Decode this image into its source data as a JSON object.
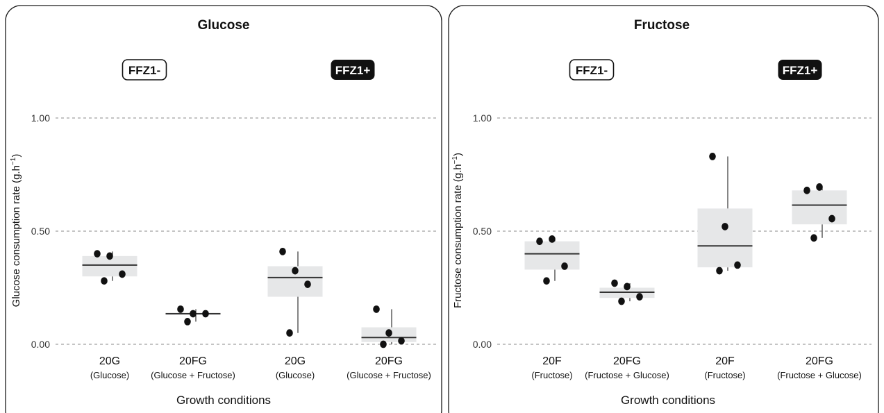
{
  "chart_data": [
    {
      "type": "box",
      "title": "Glucose",
      "xlabel": "Growth conditions",
      "ylabel": "Glucose consumption rate (g.h",
      "ylabel_sup": "−1",
      "ylabel_close": ")",
      "ylim": [
        0,
        1.0
      ],
      "yticks": [
        "0.00",
        "0.50",
        "1.00"
      ],
      "ytick_values": [
        0,
        0.5,
        1.0
      ],
      "groups": [
        {
          "label": "FFZ1-",
          "style": "outline"
        },
        {
          "label": "FFZ1+",
          "style": "filled"
        }
      ],
      "categories": [
        {
          "main": "20G",
          "sub": "(Glucose)",
          "group": 0,
          "q1": 0.3,
          "median": 0.35,
          "q3": 0.39,
          "whisker_low": 0.28,
          "whisker_high": 0.41,
          "points": [
            0.4,
            0.39,
            0.31,
            0.28
          ]
        },
        {
          "main": "20FG",
          "sub": "(Glucose + Fructose)",
          "group": 0,
          "q1": 0.13,
          "median": 0.135,
          "q3": 0.14,
          "whisker_low": 0.1,
          "whisker_high": 0.155,
          "points": [
            0.155,
            0.135,
            0.135,
            0.1
          ]
        },
        {
          "main": "20G",
          "sub": "(Glucose)",
          "group": 1,
          "q1": 0.21,
          "median": 0.295,
          "q3": 0.345,
          "whisker_low": 0.05,
          "whisker_high": 0.41,
          "points": [
            0.41,
            0.325,
            0.265,
            0.05
          ]
        },
        {
          "main": "20FG",
          "sub": "(Glucose + Fructose)",
          "group": 1,
          "q1": 0.01,
          "median": 0.03,
          "q3": 0.075,
          "whisker_low": 0.0,
          "whisker_high": 0.155,
          "points": [
            0.155,
            0.05,
            0.015,
            0.0
          ]
        }
      ]
    },
    {
      "type": "box",
      "title": "Fructose",
      "xlabel": "Growth conditions",
      "ylabel": "Fructose consumption rate (g.h",
      "ylabel_sup": "−1",
      "ylabel_close": ")",
      "ylim": [
        0,
        1.0
      ],
      "yticks": [
        "0.00",
        "0.50",
        "1.00"
      ],
      "ytick_values": [
        0,
        0.5,
        1.0
      ],
      "groups": [
        {
          "label": "FFZ1-",
          "style": "outline"
        },
        {
          "label": "FFZ1+",
          "style": "filled"
        }
      ],
      "categories": [
        {
          "main": "20F",
          "sub": "(Fructose)",
          "group": 0,
          "q1": 0.33,
          "median": 0.4,
          "q3": 0.455,
          "whisker_low": 0.28,
          "whisker_high": 0.465,
          "points": [
            0.455,
            0.465,
            0.345,
            0.28
          ]
        },
        {
          "main": "20FG",
          "sub": "(Fructose + Glucose)",
          "group": 0,
          "q1": 0.205,
          "median": 0.23,
          "q3": 0.25,
          "whisker_low": 0.19,
          "whisker_high": 0.27,
          "points": [
            0.27,
            0.255,
            0.21,
            0.19
          ]
        },
        {
          "main": "20F",
          "sub": "(Fructose)",
          "group": 1,
          "q1": 0.34,
          "median": 0.435,
          "q3": 0.6,
          "whisker_low": 0.325,
          "whisker_high": 0.83,
          "points": [
            0.83,
            0.52,
            0.35,
            0.325
          ]
        },
        {
          "main": "20FG",
          "sub": "(Fructose + Glucose)",
          "group": 1,
          "q1": 0.53,
          "median": 0.615,
          "q3": 0.68,
          "whisker_low": 0.47,
          "whisker_high": 0.695,
          "points": [
            0.68,
            0.695,
            0.555,
            0.47
          ]
        }
      ]
    }
  ]
}
